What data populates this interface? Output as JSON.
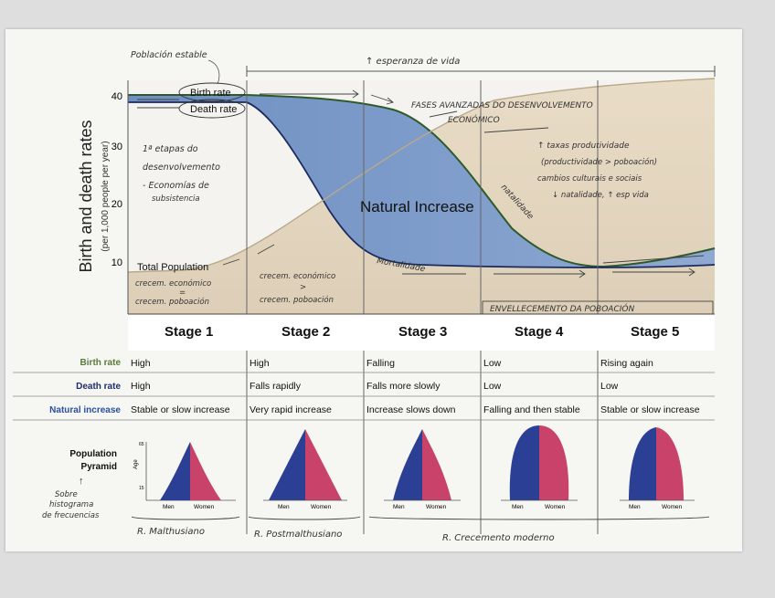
{
  "y_axis": {
    "title": "Birth and death rates",
    "subtitle": "(per 1,000 people per year)",
    "ticks": [
      "40",
      "30",
      "20",
      "10"
    ]
  },
  "chart_labels": {
    "birth_rate": "Birth rate",
    "death_rate": "Death rate",
    "natural_increase": "Natural Increase",
    "total_population": "Total Population"
  },
  "handwritten": {
    "poblacion_estable": "Población estable",
    "esperanza_vida": "↑ esperanza de vida",
    "primeras_etapas_1": "1ª etapas do",
    "primeras_etapas_2": "desenvolvemento",
    "economias_1": "- Economías de",
    "economias_2": "subsistencia",
    "fases_1": "FASES AVANZADAS DO DESENVOLVEMENTO",
    "fases_2": "ECONÓMICO",
    "taxas_1": "↑ taxas produtividade",
    "taxas_2": "(productividade > poboación)",
    "taxas_3": "cambios culturais e sociais",
    "taxas_4": "↓ natalidade, ↑ esp vida",
    "natalidade": "natalidade",
    "mortalidade": "Mortalidade",
    "stage1_bottom_1": "crecem. económico",
    "stage1_bottom_2": "=",
    "stage1_bottom_3": "crecem. poboación",
    "stage2_bottom_1": "crecem. económico",
    "stage2_bottom_2": ">",
    "stage2_bottom_3": "crecem. poboación",
    "envellecemento": "ENVELLECEMENTO DA POBOACIÓN",
    "sobre_hist_1": "Sobre",
    "sobre_hist_2": "histograma",
    "sobre_hist_3": "de frecuencias",
    "r_malthusiano": "R. Malthusiano",
    "r_postmalthusiano": "R. Postmalthusiano",
    "r_moderno": "R. Crecemento moderno"
  },
  "stages": [
    "Stage 1",
    "Stage 2",
    "Stage 3",
    "Stage 4",
    "Stage 5"
  ],
  "rows": [
    {
      "label": "Birth rate",
      "color": "#5a7a3a",
      "values": [
        "High",
        "High",
        "Falling",
        "Low",
        "Rising again"
      ]
    },
    {
      "label": "Death rate",
      "color": "#1f2d6b",
      "values": [
        "High",
        "Falls rapidly",
        "Falls more slowly",
        "Low",
        "Low"
      ]
    },
    {
      "label": "Natural increase",
      "color": "#2a4fa0",
      "values": [
        "Stable or slow increase",
        "Very rapid increase",
        "Increase slows down",
        "Falling and then stable",
        "Stable or slow increase"
      ]
    }
  ],
  "pyramid": {
    "label_1": "Population",
    "label_2": "Pyramid",
    "age": "Age",
    "age_top": "65",
    "age_bottom": "15",
    "men": "Men",
    "women": "Women"
  },
  "colors": {
    "men": "#2b3f95",
    "women": "#c8426a",
    "natural_increase": "#8aa6cf",
    "population_area": "#e4d5bd"
  }
}
